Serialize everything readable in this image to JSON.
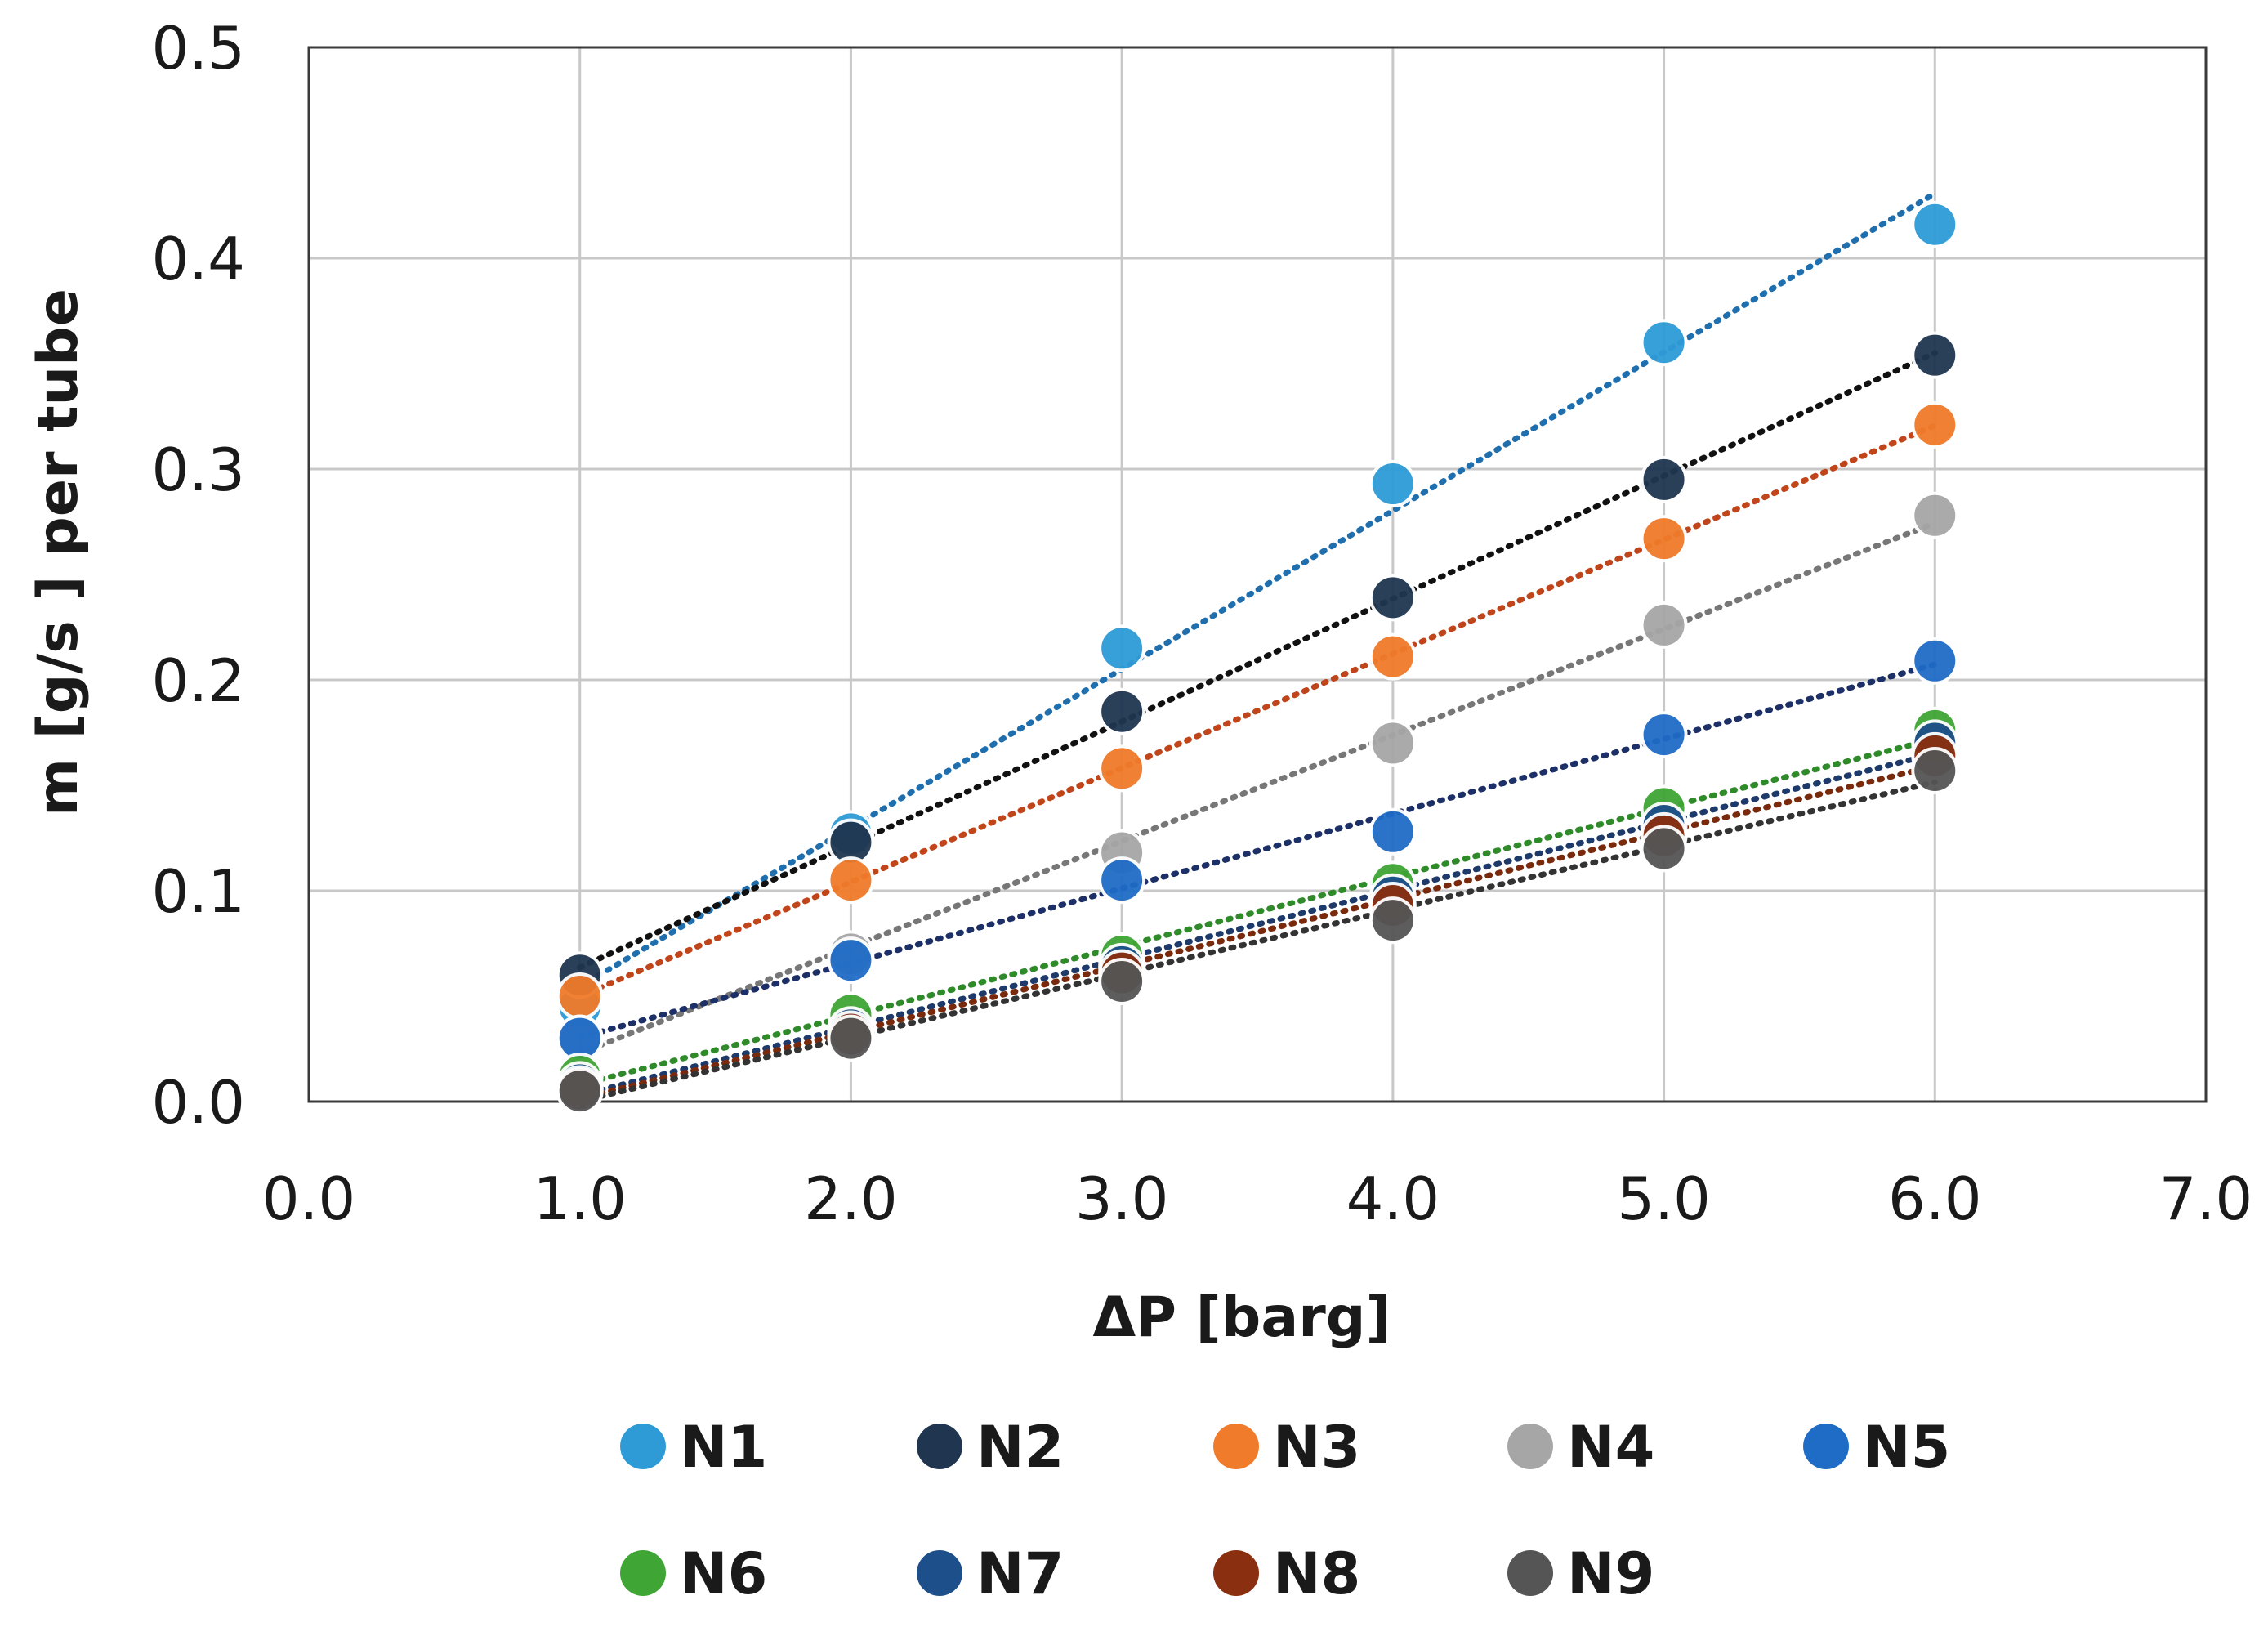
{
  "chart_data": {
    "type": "scatter",
    "title": "",
    "xlabel": "ΔP [barg]",
    "ylabel": "m [g/s ] per tube",
    "xlim": [
      0.0,
      7.0
    ],
    "ylim": [
      0.0,
      0.5
    ],
    "x_ticks": [
      "0.0",
      "1.0",
      "2.0",
      "3.0",
      "4.0",
      "5.0",
      "6.0",
      "7.0"
    ],
    "y_ticks": [
      "0.0",
      "0.1",
      "0.2",
      "0.3",
      "0.4",
      "0.5"
    ],
    "grid": true,
    "trendline": "dotted linear",
    "legend_position": "bottom",
    "x": [
      1.0,
      2.0,
      3.0,
      4.0,
      5.0,
      6.0
    ],
    "series": [
      {
        "name": "N1",
        "color": "#2e9bd6",
        "line_color": "#1f6fae",
        "values": [
          0.045,
          0.127,
          0.215,
          0.293,
          0.36,
          0.416
        ]
      },
      {
        "name": "N2",
        "color": "#1f3550",
        "line_color": "#111111",
        "values": [
          0.06,
          0.123,
          0.185,
          0.239,
          0.295,
          0.354
        ]
      },
      {
        "name": "N3",
        "color": "#f07b2a",
        "line_color": "#c0451b",
        "values": [
          0.05,
          0.105,
          0.158,
          0.211,
          0.267,
          0.321
        ]
      },
      {
        "name": "N4",
        "color": "#a6a6a6",
        "line_color": "#777777",
        "values": [
          0.03,
          0.07,
          0.118,
          0.17,
          0.226,
          0.278
        ]
      },
      {
        "name": "N5",
        "color": "#1f6cc7",
        "line_color": "#1c2f66",
        "values": [
          0.03,
          0.067,
          0.105,
          0.128,
          0.174,
          0.209
        ]
      },
      {
        "name": "N6",
        "color": "#3fa535",
        "line_color": "#2f8a2a",
        "values": [
          0.012,
          0.041,
          0.069,
          0.103,
          0.139,
          0.176
        ]
      },
      {
        "name": "N7",
        "color": "#1d4f8a",
        "line_color": "#1d3a6a",
        "values": [
          0.008,
          0.034,
          0.064,
          0.097,
          0.131,
          0.17
        ]
      },
      {
        "name": "N8",
        "color": "#8a2f0f",
        "line_color": "#7a2a0c",
        "values": [
          0.006,
          0.032,
          0.061,
          0.093,
          0.126,
          0.164
        ]
      },
      {
        "name": "N9",
        "color": "#555555",
        "line_color": "#333333",
        "values": [
          0.005,
          0.03,
          0.057,
          0.086,
          0.12,
          0.157
        ]
      }
    ]
  }
}
